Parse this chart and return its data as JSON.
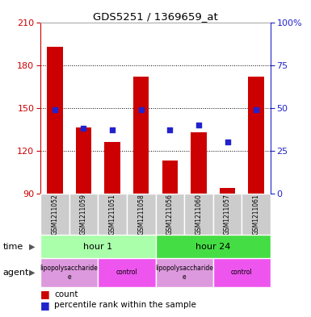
{
  "title": "GDS5251 / 1369659_at",
  "samples": [
    "GSM1211052",
    "GSM1211059",
    "GSM1211051",
    "GSM1211058",
    "GSM1211056",
    "GSM1211060",
    "GSM1211057",
    "GSM1211061"
  ],
  "counts": [
    193,
    136,
    126,
    172,
    113,
    133,
    94,
    172
  ],
  "percentiles": [
    49,
    38,
    37,
    49,
    37,
    40,
    30,
    49
  ],
  "ymin": 90,
  "ymax": 210,
  "yticks": [
    90,
    120,
    150,
    180,
    210
  ],
  "pct_yticks": [
    0,
    25,
    50,
    75,
    100
  ],
  "bar_color": "#cc0000",
  "dot_color": "#2222cc",
  "time_groups": [
    {
      "label": "hour 1",
      "start": 0,
      "end": 4,
      "color": "#aaffaa"
    },
    {
      "label": "hour 24",
      "start": 4,
      "end": 8,
      "color": "#44dd44"
    }
  ],
  "agent_groups": [
    {
      "label": "lipopolysaccharide\ne",
      "start": 0,
      "end": 2,
      "color": "#dd99dd"
    },
    {
      "label": "control",
      "start": 2,
      "end": 4,
      "color": "#ee55ee"
    },
    {
      "label": "lipopolysaccharide\ne",
      "start": 4,
      "end": 6,
      "color": "#dd99dd"
    },
    {
      "label": "control",
      "start": 6,
      "end": 8,
      "color": "#ee55ee"
    }
  ],
  "legend_count_label": "count",
  "legend_pct_label": "percentile rank within the sample",
  "time_label": "time",
  "agent_label": "agent",
  "bg_color": "#ffffff",
  "left_axis_color": "#cc0000",
  "right_axis_color": "#2222cc",
  "sample_bg_color": "#cccccc"
}
